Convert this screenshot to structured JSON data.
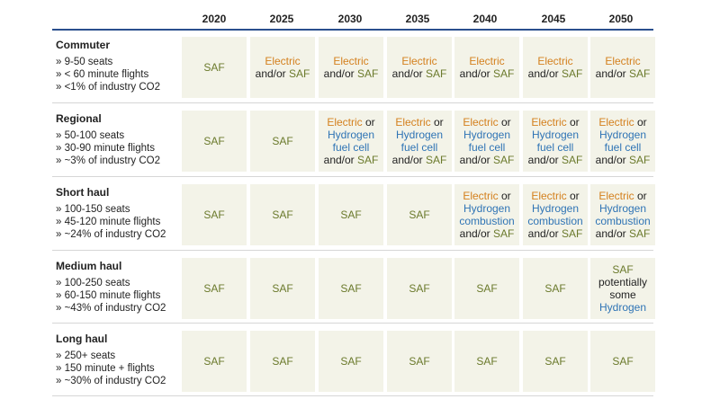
{
  "colors": {
    "saf": "#6b7a2c",
    "electric": "#d4801e",
    "hydrogen": "#2f74b5",
    "cell_bg": "#f3f3e8",
    "header_rule": "#2a4f8e"
  },
  "years": [
    "2020",
    "2025",
    "2030",
    "2035",
    "2040",
    "2045",
    "2050"
  ],
  "rows": [
    {
      "title": "Commuter",
      "details": [
        "» 9-50 seats",
        "» < 60 minute flights",
        "» <1% of industry CO2"
      ],
      "cells": [
        {
          "lines": [
            [
              {
                "t": "SAF",
                "c": "saf"
              }
            ]
          ]
        },
        {
          "lines": [
            [
              {
                "t": "Electric",
                "c": "electric"
              }
            ],
            [
              {
                "t": "and/or ",
                "c": "plain"
              },
              {
                "t": "SAF",
                "c": "saf"
              }
            ]
          ]
        },
        {
          "lines": [
            [
              {
                "t": "Electric",
                "c": "electric"
              }
            ],
            [
              {
                "t": "and/or ",
                "c": "plain"
              },
              {
                "t": "SAF",
                "c": "saf"
              }
            ]
          ]
        },
        {
          "lines": [
            [
              {
                "t": "Electric",
                "c": "electric"
              }
            ],
            [
              {
                "t": "and/or ",
                "c": "plain"
              },
              {
                "t": "SAF",
                "c": "saf"
              }
            ]
          ]
        },
        {
          "lines": [
            [
              {
                "t": "Electric",
                "c": "electric"
              }
            ],
            [
              {
                "t": "and/or ",
                "c": "plain"
              },
              {
                "t": "SAF",
                "c": "saf"
              }
            ]
          ]
        },
        {
          "lines": [
            [
              {
                "t": "Electric",
                "c": "electric"
              }
            ],
            [
              {
                "t": "and/or ",
                "c": "plain"
              },
              {
                "t": "SAF",
                "c": "saf"
              }
            ]
          ]
        },
        {
          "lines": [
            [
              {
                "t": "Electric",
                "c": "electric"
              }
            ],
            [
              {
                "t": "and/or ",
                "c": "plain"
              },
              {
                "t": "SAF",
                "c": "saf"
              }
            ]
          ]
        }
      ]
    },
    {
      "title": "Regional",
      "details": [
        "» 50-100 seats",
        "» 30-90 minute flights",
        "» ~3% of industry CO2"
      ],
      "cells": [
        {
          "lines": [
            [
              {
                "t": "SAF",
                "c": "saf"
              }
            ]
          ]
        },
        {
          "lines": [
            [
              {
                "t": "SAF",
                "c": "saf"
              }
            ]
          ]
        },
        {
          "lines": [
            [
              {
                "t": "Electric",
                "c": "electric"
              },
              {
                "t": " or",
                "c": "plain"
              }
            ],
            [
              {
                "t": "Hydrogen",
                "c": "hydrogen"
              }
            ],
            [
              {
                "t": "fuel cell",
                "c": "hydrogen"
              }
            ],
            [
              {
                "t": "and/or ",
                "c": "plain"
              },
              {
                "t": "SAF",
                "c": "saf"
              }
            ]
          ]
        },
        {
          "lines": [
            [
              {
                "t": "Electric",
                "c": "electric"
              },
              {
                "t": " or",
                "c": "plain"
              }
            ],
            [
              {
                "t": "Hydrogen",
                "c": "hydrogen"
              }
            ],
            [
              {
                "t": "fuel cell",
                "c": "hydrogen"
              }
            ],
            [
              {
                "t": "and/or ",
                "c": "plain"
              },
              {
                "t": "SAF",
                "c": "saf"
              }
            ]
          ]
        },
        {
          "lines": [
            [
              {
                "t": "Electric",
                "c": "electric"
              },
              {
                "t": " or",
                "c": "plain"
              }
            ],
            [
              {
                "t": "Hydrogen",
                "c": "hydrogen"
              }
            ],
            [
              {
                "t": "fuel cell",
                "c": "hydrogen"
              }
            ],
            [
              {
                "t": "and/or ",
                "c": "plain"
              },
              {
                "t": "SAF",
                "c": "saf"
              }
            ]
          ]
        },
        {
          "lines": [
            [
              {
                "t": "Electric",
                "c": "electric"
              },
              {
                "t": " or",
                "c": "plain"
              }
            ],
            [
              {
                "t": "Hydrogen",
                "c": "hydrogen"
              }
            ],
            [
              {
                "t": "fuel cell",
                "c": "hydrogen"
              }
            ],
            [
              {
                "t": "and/or ",
                "c": "plain"
              },
              {
                "t": "SAF",
                "c": "saf"
              }
            ]
          ]
        },
        {
          "lines": [
            [
              {
                "t": "Electric",
                "c": "electric"
              },
              {
                "t": " or",
                "c": "plain"
              }
            ],
            [
              {
                "t": "Hydrogen",
                "c": "hydrogen"
              }
            ],
            [
              {
                "t": "fuel cell",
                "c": "hydrogen"
              }
            ],
            [
              {
                "t": "and/or ",
                "c": "plain"
              },
              {
                "t": "SAF",
                "c": "saf"
              }
            ]
          ]
        }
      ]
    },
    {
      "title": "Short haul",
      "details": [
        "» 100-150 seats",
        "» 45-120 minute flights",
        "» ~24% of industry CO2"
      ],
      "cells": [
        {
          "lines": [
            [
              {
                "t": "SAF",
                "c": "saf"
              }
            ]
          ]
        },
        {
          "lines": [
            [
              {
                "t": "SAF",
                "c": "saf"
              }
            ]
          ]
        },
        {
          "lines": [
            [
              {
                "t": "SAF",
                "c": "saf"
              }
            ]
          ]
        },
        {
          "lines": [
            [
              {
                "t": "SAF",
                "c": "saf"
              }
            ]
          ]
        },
        {
          "lines": [
            [
              {
                "t": "Electric",
                "c": "electric"
              },
              {
                "t": " or",
                "c": "plain"
              }
            ],
            [
              {
                "t": "Hydrogen",
                "c": "hydrogen"
              }
            ],
            [
              {
                "t": "combustion",
                "c": "hydrogen"
              }
            ],
            [
              {
                "t": "and/or ",
                "c": "plain"
              },
              {
                "t": "SAF",
                "c": "saf"
              }
            ]
          ]
        },
        {
          "lines": [
            [
              {
                "t": "Electric",
                "c": "electric"
              },
              {
                "t": " or",
                "c": "plain"
              }
            ],
            [
              {
                "t": "Hydrogen",
                "c": "hydrogen"
              }
            ],
            [
              {
                "t": "combustion",
                "c": "hydrogen"
              }
            ],
            [
              {
                "t": "and/or ",
                "c": "plain"
              },
              {
                "t": "SAF",
                "c": "saf"
              }
            ]
          ]
        },
        {
          "lines": [
            [
              {
                "t": "Electric",
                "c": "electric"
              },
              {
                "t": " or",
                "c": "plain"
              }
            ],
            [
              {
                "t": "Hydrogen",
                "c": "hydrogen"
              }
            ],
            [
              {
                "t": "combustion",
                "c": "hydrogen"
              }
            ],
            [
              {
                "t": "and/or ",
                "c": "plain"
              },
              {
                "t": "SAF",
                "c": "saf"
              }
            ]
          ]
        }
      ]
    },
    {
      "title": "Medium haul",
      "details": [
        "» 100-250 seats",
        "» 60-150 minute flights",
        "» ~43% of industry CO2"
      ],
      "cells": [
        {
          "lines": [
            [
              {
                "t": "SAF",
                "c": "saf"
              }
            ]
          ]
        },
        {
          "lines": [
            [
              {
                "t": "SAF",
                "c": "saf"
              }
            ]
          ]
        },
        {
          "lines": [
            [
              {
                "t": "SAF",
                "c": "saf"
              }
            ]
          ]
        },
        {
          "lines": [
            [
              {
                "t": "SAF",
                "c": "saf"
              }
            ]
          ]
        },
        {
          "lines": [
            [
              {
                "t": "SAF",
                "c": "saf"
              }
            ]
          ]
        },
        {
          "lines": [
            [
              {
                "t": "SAF",
                "c": "saf"
              }
            ]
          ]
        },
        {
          "lines": [
            [
              {
                "t": "SAF",
                "c": "saf"
              }
            ],
            [
              {
                "t": "potentially",
                "c": "plain"
              }
            ],
            [
              {
                "t": "some",
                "c": "plain"
              }
            ],
            [
              {
                "t": "Hydrogen",
                "c": "hydrogen"
              }
            ]
          ]
        }
      ]
    },
    {
      "title": "Long haul",
      "details": [
        "» 250+ seats",
        "» 150 minute + flights",
        "» ~30% of industry CO2"
      ],
      "cells": [
        {
          "lines": [
            [
              {
                "t": "SAF",
                "c": "saf"
              }
            ]
          ]
        },
        {
          "lines": [
            [
              {
                "t": "SAF",
                "c": "saf"
              }
            ]
          ]
        },
        {
          "lines": [
            [
              {
                "t": "SAF",
                "c": "saf"
              }
            ]
          ]
        },
        {
          "lines": [
            [
              {
                "t": "SAF",
                "c": "saf"
              }
            ]
          ]
        },
        {
          "lines": [
            [
              {
                "t": "SAF",
                "c": "saf"
              }
            ]
          ]
        },
        {
          "lines": [
            [
              {
                "t": "SAF",
                "c": "saf"
              }
            ]
          ]
        },
        {
          "lines": [
            [
              {
                "t": "SAF",
                "c": "saf"
              }
            ]
          ]
        }
      ]
    }
  ]
}
